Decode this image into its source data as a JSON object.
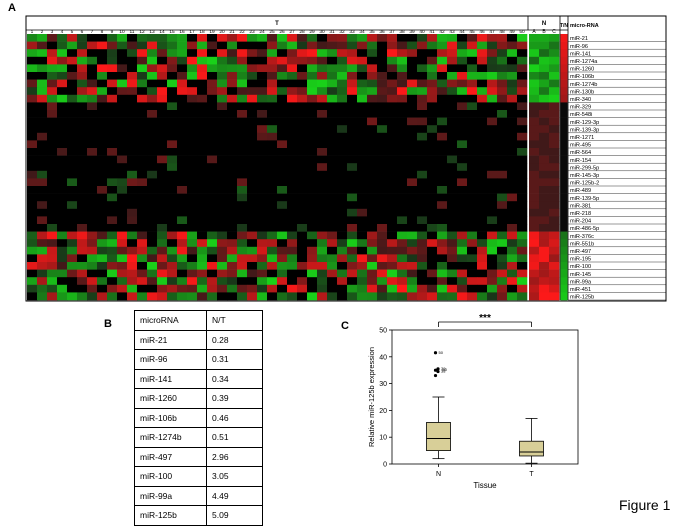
{
  "panels": {
    "a": "A",
    "b": "B",
    "c": "C"
  },
  "heatmap": {
    "group_t": "T",
    "group_n": "N",
    "tn_label": "T/N",
    "mirna_header": "micro-RNA",
    "t_columns": [
      "1",
      "2",
      "3",
      "4",
      "5",
      "6",
      "7",
      "8",
      "9",
      "10",
      "11",
      "12",
      "13",
      "14",
      "15",
      "16",
      "17",
      "18",
      "19",
      "20",
      "21",
      "22",
      "23",
      "24",
      "25",
      "26",
      "27",
      "28",
      "29",
      "30",
      "31",
      "32",
      "33",
      "34",
      "35",
      "36",
      "37",
      "38",
      "39",
      "40",
      "41",
      "42",
      "43",
      "44",
      "45",
      "46",
      "47",
      "48",
      "49",
      "50"
    ],
    "n_columns": [
      "A",
      "B",
      "C"
    ],
    "mirnas": [
      "miR-21",
      "miR-96",
      "miR-141",
      "miR-1274a",
      "miR-1260",
      "miR-106b",
      "miR-1274b",
      "miR-130b",
      "miR-340",
      "miR-329",
      "miR-548i",
      "miR-129-3p",
      "miR-139-3p",
      "miR-1271",
      "miR-495",
      "miR-564",
      "miR-154",
      "miR-299-5p",
      "miR-145-3p",
      "miR-125b-2",
      "miR-489",
      "miR-139-5p",
      "miR-381",
      "miR-218",
      "miR-204",
      "miR-486-5p",
      "miR-376c",
      "miR-551b",
      "miR-497",
      "miR-195",
      "miR-100",
      "miR-145",
      "miR-99a",
      "miR-451",
      "miR-125b"
    ],
    "colors": {
      "up": "#ff2020",
      "down": "#20c020",
      "mid": "#000000"
    }
  },
  "table": {
    "header": [
      "microRNA",
      "N/T"
    ],
    "rows": [
      [
        "miR-21",
        "0.28"
      ],
      [
        "miR-96",
        "0.31"
      ],
      [
        "miR-141",
        "0.34"
      ],
      [
        "miR-1260",
        "0.39"
      ],
      [
        "miR-106b",
        "0.46"
      ],
      [
        "miR-1274b",
        "0.51"
      ],
      [
        "miR-497",
        "2.96"
      ],
      [
        "miR-100",
        "3.05"
      ],
      [
        "miR-99a",
        "4.49"
      ],
      [
        "miR-125b",
        "5.09"
      ]
    ]
  },
  "chart_data": {
    "type": "box",
    "xlabel": "Tissue",
    "ylabel": "Relative miR-125b expression",
    "categories": [
      "N",
      "T"
    ],
    "ylim": [
      0,
      50
    ],
    "yticks": [
      0,
      10,
      20,
      30,
      40,
      50
    ],
    "boxes": [
      {
        "category": "N",
        "min": 2,
        "q1": 5,
        "median": 9.5,
        "q3": 15.5,
        "max": 25,
        "outliers": [
          {
            "value": 41.5,
            "label": "50"
          },
          {
            "value": 35.5,
            "label": "39"
          },
          {
            "value": 35,
            "label": "40"
          },
          {
            "value": 34.5,
            "label": "38"
          },
          {
            "value": 33,
            "label": ""
          }
        ]
      },
      {
        "category": "T",
        "min": 0.3,
        "q1": 3,
        "median": 4.5,
        "q3": 8.5,
        "max": 17,
        "outliers": []
      }
    ],
    "significance": "***",
    "box_color": "#d8cf98"
  },
  "figure_label": "Figure 1"
}
